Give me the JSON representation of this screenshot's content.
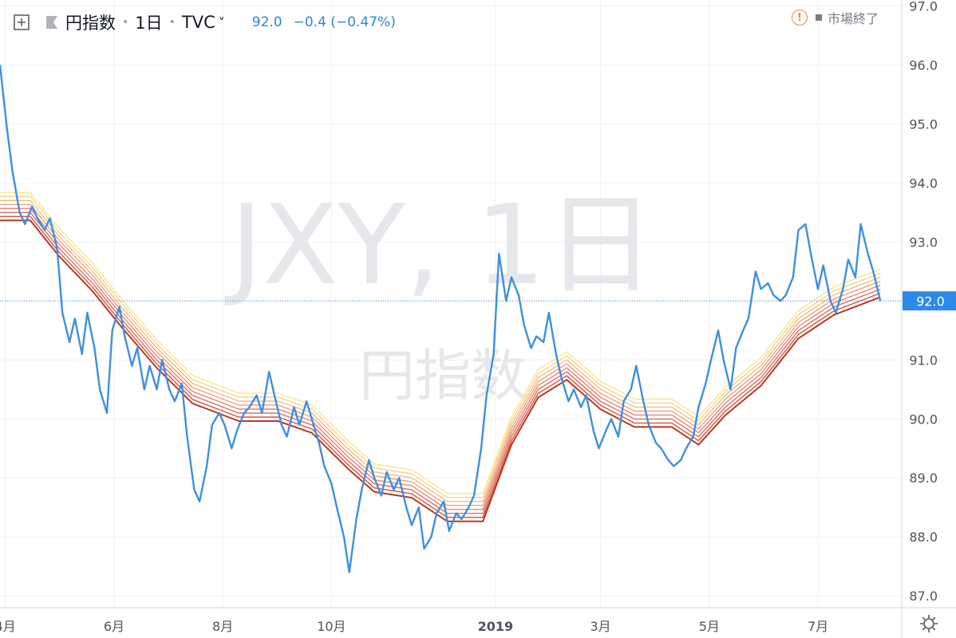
{
  "header": {
    "symbol_title": "円指数",
    "interval": "1日",
    "exchange": "TVC",
    "last_price": "92.0",
    "change": "−0.4 (−0.47%)",
    "market_status": "市場終了",
    "icons": [
      "crosshair-add-icon",
      "flag-icon",
      "chevron-down-icon",
      "warning-icon",
      "gear-icon"
    ]
  },
  "watermark": {
    "symbol": "JXY, 1日",
    "name": "円指数"
  },
  "chart_data": {
    "type": "line",
    "y_axis": {
      "ticks": [
        "87.0",
        "88.0",
        "89.0",
        "90.0",
        "91.0",
        "92.0",
        "93.0",
        "94.0",
        "95.0",
        "96.0",
        "97.0"
      ],
      "tick_values": [
        87,
        88,
        89,
        90,
        91,
        92,
        93,
        94,
        95,
        96,
        97
      ],
      "ylim": [
        86.8,
        97.1
      ],
      "position": "right"
    },
    "x_axis": {
      "ticks": [
        "4月",
        "6月",
        "8月",
        "10月",
        "2019",
        "3月",
        "5月",
        "7月"
      ],
      "tick_dates": [
        "2018-04-01",
        "2018-06-01",
        "2018-08-01",
        "2018-10-01",
        "2019-01-01",
        "2019-03-01",
        "2019-05-01",
        "2019-07-01"
      ],
      "xlim": [
        "2018-03-29",
        "2019-08-17"
      ]
    },
    "last_value_label": "92.0",
    "last_value": 92.0,
    "grid": true,
    "colors": {
      "price": "#3d90e0",
      "ribbon": [
        "#f7e78d",
        "#f5d58a",
        "#f2bd84",
        "#eda27c",
        "#e78672",
        "#e06b62",
        "#d4533f",
        "#b8381f"
      ],
      "price_tag": "#2e8ae6",
      "grid": "#eef1f5"
    },
    "series": [
      {
        "role": "price",
        "points": [
          [
            "2018-03-29",
            96.0
          ],
          [
            "2018-04-02",
            94.9
          ],
          [
            "2018-04-05",
            94.2
          ],
          [
            "2018-04-09",
            93.5
          ],
          [
            "2018-04-12",
            93.3
          ],
          [
            "2018-04-16",
            93.6
          ],
          [
            "2018-04-19",
            93.4
          ],
          [
            "2018-04-23",
            93.2
          ],
          [
            "2018-04-26",
            93.4
          ],
          [
            "2018-04-30",
            92.9
          ],
          [
            "2018-05-03",
            91.8
          ],
          [
            "2018-05-07",
            91.3
          ],
          [
            "2018-05-10",
            91.7
          ],
          [
            "2018-05-14",
            91.1
          ],
          [
            "2018-05-17",
            91.8
          ],
          [
            "2018-05-21",
            91.2
          ],
          [
            "2018-05-24",
            90.5
          ],
          [
            "2018-05-28",
            90.1
          ],
          [
            "2018-05-31",
            91.5
          ],
          [
            "2018-06-04",
            91.9
          ],
          [
            "2018-06-07",
            91.4
          ],
          [
            "2018-06-11",
            90.9
          ],
          [
            "2018-06-14",
            91.2
          ],
          [
            "2018-06-18",
            90.5
          ],
          [
            "2018-06-21",
            90.9
          ],
          [
            "2018-06-25",
            90.5
          ],
          [
            "2018-06-28",
            91.0
          ],
          [
            "2018-07-02",
            90.5
          ],
          [
            "2018-07-05",
            90.3
          ],
          [
            "2018-07-09",
            90.6
          ],
          [
            "2018-07-12",
            89.7
          ],
          [
            "2018-07-16",
            88.8
          ],
          [
            "2018-07-19",
            88.6
          ],
          [
            "2018-07-23",
            89.2
          ],
          [
            "2018-07-26",
            89.9
          ],
          [
            "2018-07-30",
            90.1
          ],
          [
            "2018-08-02",
            89.9
          ],
          [
            "2018-08-06",
            89.5
          ],
          [
            "2018-08-09",
            89.8
          ],
          [
            "2018-08-13",
            90.1
          ],
          [
            "2018-08-16",
            90.2
          ],
          [
            "2018-08-20",
            90.4
          ],
          [
            "2018-08-23",
            90.1
          ],
          [
            "2018-08-27",
            90.8
          ],
          [
            "2018-08-30",
            90.4
          ],
          [
            "2018-09-03",
            89.9
          ],
          [
            "2018-09-06",
            89.7
          ],
          [
            "2018-09-10",
            90.2
          ],
          [
            "2018-09-13",
            89.9
          ],
          [
            "2018-09-17",
            90.3
          ],
          [
            "2018-09-20",
            90.0
          ],
          [
            "2018-09-24",
            89.6
          ],
          [
            "2018-09-27",
            89.2
          ],
          [
            "2018-10-01",
            88.9
          ],
          [
            "2018-10-04",
            88.5
          ],
          [
            "2018-10-08",
            88.0
          ],
          [
            "2018-10-11",
            87.4
          ],
          [
            "2018-10-15",
            88.3
          ],
          [
            "2018-10-18",
            88.8
          ],
          [
            "2018-10-22",
            89.3
          ],
          [
            "2018-10-25",
            89.0
          ],
          [
            "2018-10-29",
            88.7
          ],
          [
            "2018-11-01",
            89.1
          ],
          [
            "2018-11-05",
            88.8
          ],
          [
            "2018-11-08",
            89.0
          ],
          [
            "2018-11-12",
            88.5
          ],
          [
            "2018-11-15",
            88.2
          ],
          [
            "2018-11-19",
            88.5
          ],
          [
            "2018-11-22",
            87.8
          ],
          [
            "2018-11-26",
            88.0
          ],
          [
            "2018-11-29",
            88.4
          ],
          [
            "2018-12-03",
            88.6
          ],
          [
            "2018-12-06",
            88.1
          ],
          [
            "2018-12-10",
            88.4
          ],
          [
            "2018-12-13",
            88.3
          ],
          [
            "2018-12-17",
            88.5
          ],
          [
            "2018-12-20",
            88.7
          ],
          [
            "2018-12-24",
            89.5
          ],
          [
            "2018-12-27",
            90.4
          ],
          [
            "2018-12-31",
            91.1
          ],
          [
            "2019-01-03",
            92.8
          ],
          [
            "2019-01-07",
            92.0
          ],
          [
            "2019-01-10",
            92.4
          ],
          [
            "2019-01-14",
            92.1
          ],
          [
            "2019-01-17",
            91.6
          ],
          [
            "2019-01-21",
            91.2
          ],
          [
            "2019-01-24",
            91.4
          ],
          [
            "2019-01-28",
            91.3
          ],
          [
            "2019-01-31",
            91.8
          ],
          [
            "2019-02-04",
            91.1
          ],
          [
            "2019-02-07",
            90.7
          ],
          [
            "2019-02-11",
            90.3
          ],
          [
            "2019-02-14",
            90.5
          ],
          [
            "2019-02-18",
            90.2
          ],
          [
            "2019-02-21",
            90.4
          ],
          [
            "2019-02-25",
            89.8
          ],
          [
            "2019-02-28",
            89.5
          ],
          [
            "2019-03-04",
            89.8
          ],
          [
            "2019-03-07",
            90.0
          ],
          [
            "2019-03-11",
            89.7
          ],
          [
            "2019-03-14",
            90.3
          ],
          [
            "2019-03-18",
            90.5
          ],
          [
            "2019-03-21",
            90.9
          ],
          [
            "2019-03-25",
            90.3
          ],
          [
            "2019-03-28",
            89.9
          ],
          [
            "2019-04-01",
            89.6
          ],
          [
            "2019-04-04",
            89.5
          ],
          [
            "2019-04-08",
            89.3
          ],
          [
            "2019-04-11",
            89.2
          ],
          [
            "2019-04-15",
            89.3
          ],
          [
            "2019-04-18",
            89.5
          ],
          [
            "2019-04-22",
            89.7
          ],
          [
            "2019-04-25",
            90.2
          ],
          [
            "2019-04-29",
            90.6
          ],
          [
            "2019-05-02",
            91.0
          ],
          [
            "2019-05-06",
            91.5
          ],
          [
            "2019-05-09",
            91.0
          ],
          [
            "2019-05-13",
            90.5
          ],
          [
            "2019-05-16",
            91.2
          ],
          [
            "2019-05-20",
            91.5
          ],
          [
            "2019-05-23",
            91.7
          ],
          [
            "2019-05-27",
            92.5
          ],
          [
            "2019-05-30",
            92.2
          ],
          [
            "2019-06-03",
            92.3
          ],
          [
            "2019-06-06",
            92.1
          ],
          [
            "2019-06-10",
            92.0
          ],
          [
            "2019-06-13",
            92.1
          ],
          [
            "2019-06-17",
            92.4
          ],
          [
            "2019-06-20",
            93.2
          ],
          [
            "2019-06-24",
            93.3
          ],
          [
            "2019-06-27",
            92.8
          ],
          [
            "2019-07-01",
            92.2
          ],
          [
            "2019-07-04",
            92.6
          ],
          [
            "2019-07-08",
            92.0
          ],
          [
            "2019-07-11",
            91.8
          ],
          [
            "2019-07-15",
            92.2
          ],
          [
            "2019-07-18",
            92.7
          ],
          [
            "2019-07-22",
            92.4
          ],
          [
            "2019-07-25",
            93.3
          ],
          [
            "2019-07-29",
            92.8
          ],
          [
            "2019-08-01",
            92.5
          ],
          [
            "2019-08-05",
            92.0
          ]
        ]
      },
      {
        "role": "ribbon-average",
        "points": [
          [
            "2018-03-29",
            93.6
          ],
          [
            "2018-04-15",
            93.6
          ],
          [
            "2018-05-01",
            93.0
          ],
          [
            "2018-05-20",
            92.4
          ],
          [
            "2018-06-05",
            91.8
          ],
          [
            "2018-06-25",
            91.1
          ],
          [
            "2018-07-15",
            90.5
          ],
          [
            "2018-08-10",
            90.2
          ],
          [
            "2018-09-01",
            90.2
          ],
          [
            "2018-09-20",
            90.0
          ],
          [
            "2018-10-10",
            89.4
          ],
          [
            "2018-10-25",
            89.0
          ],
          [
            "2018-11-15",
            88.9
          ],
          [
            "2018-12-05",
            88.5
          ],
          [
            "2018-12-25",
            88.5
          ],
          [
            "2019-01-10",
            89.8
          ],
          [
            "2019-01-25",
            90.6
          ],
          [
            "2019-02-10",
            90.9
          ],
          [
            "2019-03-01",
            90.4
          ],
          [
            "2019-03-20",
            90.1
          ],
          [
            "2019-04-10",
            90.1
          ],
          [
            "2019-04-25",
            89.8
          ],
          [
            "2019-05-10",
            90.3
          ],
          [
            "2019-05-30",
            90.8
          ],
          [
            "2019-06-20",
            91.6
          ],
          [
            "2019-07-10",
            92.0
          ],
          [
            "2019-08-05",
            92.3
          ]
        ]
      }
    ]
  }
}
